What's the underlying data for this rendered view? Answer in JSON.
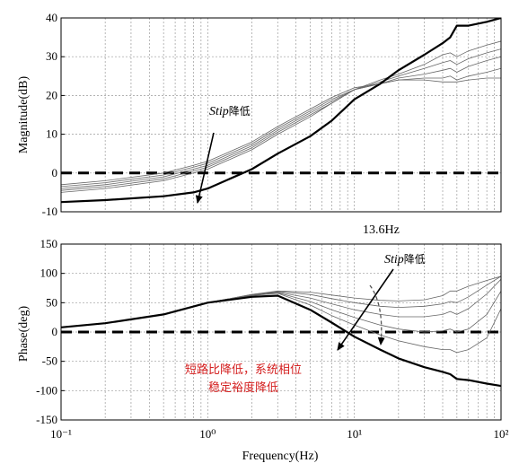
{
  "chart_data": [
    {
      "type": "line",
      "xscale": "log",
      "xlim": [
        0.1,
        100
      ],
      "ylim": [
        -10,
        40
      ],
      "ylabel": "Magnitude(dB)",
      "yticks": [
        40,
        30,
        20,
        10,
        0,
        -10
      ],
      "grid": true,
      "reference_line": {
        "y": 0,
        "style": "dashed"
      },
      "annotations": [
        {
          "text": "Stip降低",
          "italic_part": "Stip",
          "suffix": "降低",
          "arrow": true
        },
        {
          "text": "13.6Hz"
        }
      ],
      "series": [
        {
          "x": [
            0.1,
            0.2,
            0.5,
            0.8,
            1,
            2,
            3,
            5,
            7,
            10,
            15,
            20,
            30,
            40,
            45,
            50,
            60,
            80,
            100
          ],
          "y": [
            -3,
            -2,
            0,
            2,
            3,
            8,
            12,
            16.5,
            19.5,
            22,
            23,
            24,
            24,
            23.5,
            23.5,
            23.5,
            24,
            24.5,
            24.5
          ]
        },
        {
          "x": [
            0.1,
            0.2,
            0.5,
            0.8,
            1,
            2,
            3,
            5,
            7,
            10,
            15,
            20,
            30,
            40,
            45,
            50,
            60,
            80,
            100
          ],
          "y": [
            -3.5,
            -2.5,
            -0.5,
            1.5,
            2.5,
            7.5,
            11.5,
            16,
            19,
            21.5,
            23,
            24,
            24.5,
            24.5,
            25,
            24,
            25,
            26,
            27
          ]
        },
        {
          "x": [
            0.1,
            0.2,
            0.5,
            0.8,
            1,
            2,
            3,
            5,
            7,
            10,
            15,
            20,
            30,
            40,
            45,
            50,
            60,
            80,
            100
          ],
          "y": [
            -4,
            -3,
            -1,
            1,
            2,
            7,
            11,
            15.5,
            18.5,
            21.5,
            23,
            24.5,
            25.5,
            26.5,
            27,
            26,
            27.5,
            29,
            30
          ]
        },
        {
          "x": [
            0.1,
            0.2,
            0.5,
            0.8,
            1,
            2,
            3,
            5,
            7,
            10,
            15,
            20,
            30,
            40,
            45,
            50,
            60,
            80,
            100
          ],
          "y": [
            -4.5,
            -3.5,
            -1.5,
            0.5,
            1.5,
            6.5,
            10.5,
            15,
            18,
            21.5,
            23.5,
            25,
            27,
            28.5,
            29,
            28,
            29.5,
            31,
            32
          ]
        },
        {
          "x": [
            0.1,
            0.2,
            0.5,
            0.8,
            1,
            2,
            3,
            5,
            7,
            10,
            15,
            20,
            30,
            40,
            45,
            50,
            60,
            80,
            100
          ],
          "y": [
            -5,
            -4,
            -2,
            0,
            1,
            6,
            10,
            14.5,
            18,
            21.5,
            24,
            25.5,
            28,
            30.5,
            31,
            30,
            31.5,
            33,
            34
          ]
        },
        {
          "x": [
            0.1,
            0.2,
            0.5,
            0.8,
            1,
            2,
            3,
            5,
            7,
            10,
            15,
            20,
            30,
            40,
            45,
            50,
            60,
            80,
            100
          ],
          "y": [
            -7.5,
            -7,
            -6,
            -5,
            -4,
            1,
            5,
            9.5,
            13.5,
            19,
            23,
            26.5,
            30.5,
            33.5,
            35,
            38,
            38,
            39,
            40
          ]
        }
      ]
    },
    {
      "type": "line",
      "xscale": "log",
      "xlim": [
        0.1,
        100
      ],
      "ylim": [
        -150,
        150
      ],
      "xlabel": "Frequency(Hz)",
      "ylabel": "Phase(deg)",
      "yticks": [
        150,
        100,
        50,
        0,
        -50,
        -100,
        -150
      ],
      "xtick_labels": [
        "10⁻¹",
        "10⁰",
        "10¹",
        "10²"
      ],
      "xticks": [
        0.1,
        1,
        10,
        100
      ],
      "grid": true,
      "reference_line": {
        "y": 0,
        "style": "dashed"
      },
      "annotations": [
        {
          "text": "Stip降低",
          "italic_part": "Stip",
          "suffix": "降低",
          "arrow": true
        },
        {
          "text": "短路比降低，系统相位",
          "color": "#d42020"
        },
        {
          "text": "稳定裕度降低",
          "color": "#d42020"
        }
      ],
      "series": [
        {
          "x": [
            0.1,
            0.2,
            0.5,
            1,
            2,
            3,
            5,
            7,
            10,
            15,
            20,
            30,
            40,
            45,
            50,
            60,
            80,
            100
          ],
          "y": [
            8,
            15,
            30,
            50,
            64,
            70,
            68,
            63,
            58,
            54,
            53,
            55,
            62,
            70,
            70,
            78,
            88,
            95
          ]
        },
        {
          "x": [
            0.1,
            0.2,
            0.5,
            1,
            2,
            3,
            5,
            7,
            10,
            15,
            20,
            30,
            40,
            45,
            50,
            60,
            80,
            100
          ],
          "y": [
            8,
            15,
            30,
            50,
            64,
            69,
            64,
            57,
            50,
            44,
            42,
            44,
            48,
            52,
            50,
            60,
            80,
            95
          ]
        },
        {
          "x": [
            0.1,
            0.2,
            0.5,
            1,
            2,
            3,
            5,
            7,
            10,
            15,
            20,
            30,
            40,
            45,
            50,
            60,
            80,
            100
          ],
          "y": [
            8,
            15,
            30,
            50,
            63,
            68,
            58,
            48,
            38,
            30,
            26,
            26,
            30,
            35,
            30,
            40,
            65,
            90
          ]
        },
        {
          "x": [
            0.1,
            0.2,
            0.5,
            1,
            2,
            3,
            5,
            7,
            10,
            15,
            20,
            30,
            40,
            45,
            50,
            60,
            80,
            100
          ],
          "y": [
            8,
            15,
            30,
            50,
            63,
            67,
            52,
            38,
            25,
            12,
            5,
            0,
            2,
            5,
            0,
            5,
            30,
            70
          ]
        },
        {
          "x": [
            0.1,
            0.2,
            0.5,
            1,
            2,
            3,
            5,
            7,
            10,
            15,
            20,
            30,
            40,
            45,
            50,
            60,
            80,
            100
          ],
          "y": [
            8,
            15,
            30,
            50,
            62,
            66,
            46,
            28,
            12,
            -5,
            -15,
            -25,
            -30,
            -30,
            -35,
            -30,
            -10,
            40
          ]
        },
        {
          "x": [
            0.1,
            0.2,
            0.5,
            1,
            2,
            3,
            5,
            7,
            10,
            15,
            20,
            30,
            40,
            45,
            50,
            60,
            80,
            100
          ],
          "y": [
            8,
            15,
            30,
            50,
            60,
            62,
            38,
            16,
            -8,
            -30,
            -45,
            -60,
            -68,
            -72,
            -80,
            -82,
            -88,
            -92
          ]
        }
      ]
    }
  ]
}
